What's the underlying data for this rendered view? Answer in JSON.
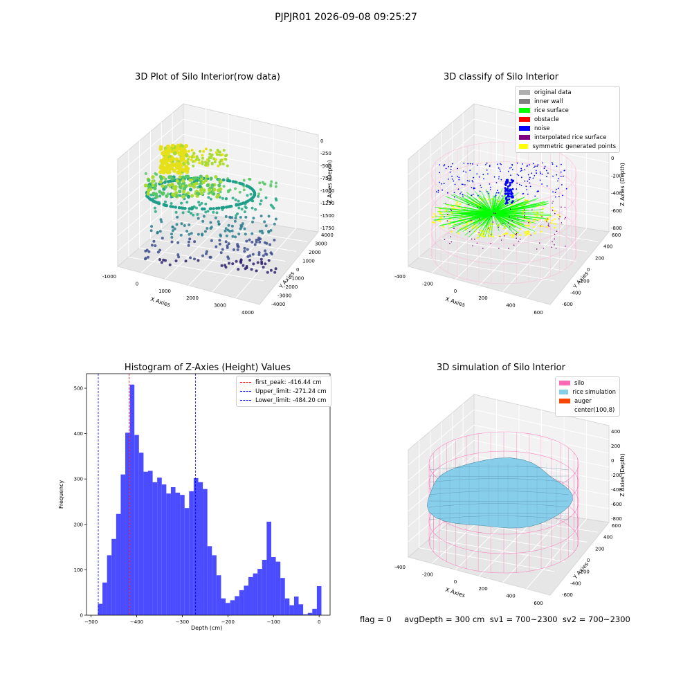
{
  "suptitle": "PJPJR01 2026-09-08 09:25:27",
  "panels": {
    "raw": {
      "title": "3D Plot of Silo Interior(row data)",
      "xlabel": "X Axies",
      "ylabel": "Y Axies",
      "zlabel": "Z Axies (Depth)",
      "xticks": [
        "-1000",
        "0",
        "1000",
        "2000",
        "3000",
        "4000"
      ],
      "yticks": [
        "4000",
        "3000",
        "2000",
        "1000",
        "0",
        "-1000",
        "-2000",
        "-3000",
        "-4000"
      ],
      "zticks": [
        "0",
        "-250",
        "-500",
        "-750",
        "-1000",
        "-1250",
        "-1500",
        "-1750"
      ]
    },
    "classify": {
      "title": "3D classify of Silo Interior",
      "xlabel": "X Axies",
      "ylabel": "Y Axies",
      "zlabel": "Z Axies (Depth)",
      "xticks": [
        "-400",
        "-200",
        "0",
        "200",
        "400",
        "600"
      ],
      "yticks": [
        "600",
        "400",
        "200",
        "0",
        "-200",
        "-400",
        "-600"
      ],
      "zticks": [
        "200",
        "0",
        "-200",
        "-400",
        "-600",
        "-800"
      ],
      "legend": [
        {
          "label": "original data",
          "color": "#b0b0b0"
        },
        {
          "label": "inner wall",
          "color": "#808080"
        },
        {
          "label": "rice surface",
          "color": "#00ff00"
        },
        {
          "label": "obstacle",
          "color": "#ff0000"
        },
        {
          "label": "noise",
          "color": "#0000ff"
        },
        {
          "label": "interpolated rice surface",
          "color": "#800080"
        },
        {
          "label": "symmetric generated points",
          "color": "#ffff00"
        }
      ]
    },
    "simulation": {
      "title": "3D simulation of Silo Interior",
      "xlabel": "X Axies",
      "ylabel": "Y Axies",
      "zlabel": "Z Axies (Depth)",
      "xticks": [
        "-400",
        "-200",
        "0",
        "200",
        "400",
        "600"
      ],
      "yticks": [
        "600",
        "400",
        "200",
        "0",
        "-200",
        "-400",
        "-600"
      ],
      "zticks": [
        "400",
        "200",
        "0",
        "-200",
        "-400",
        "-600",
        "-800"
      ],
      "legend": [
        {
          "label": "silo",
          "color": "#ff69b4"
        },
        {
          "label": "rice simulation",
          "color": "#87ceeb"
        },
        {
          "label": "auger",
          "color": "#ff4500"
        },
        {
          "label": "center(100,8)",
          "color": "#ffffff"
        }
      ]
    }
  },
  "footer": "flag = 0     avgDepth = 300 cm  sv1 = 700~2300  sv2 = 700~2300",
  "chart_data": {
    "type": "bar",
    "title": "Histogram of Z-Axies (Height) Values",
    "xlabel": "Depth (cm)",
    "ylabel": "Frequency",
    "xlim": [
      -510,
      24
    ],
    "ylim": [
      0,
      532
    ],
    "xticks": [
      -500,
      -400,
      -300,
      -200,
      -100,
      0
    ],
    "yticks": [
      0,
      100,
      200,
      300,
      400,
      500
    ],
    "bin_start": -485,
    "bin_width": 10,
    "values": [
      25,
      72,
      132,
      168,
      223,
      310,
      402,
      508,
      397,
      358,
      316,
      318,
      293,
      303,
      288,
      268,
      282,
      270,
      265,
      236,
      273,
      302,
      293,
      278,
      152,
      132,
      88,
      37,
      27,
      33,
      42,
      55,
      65,
      84,
      92,
      102,
      122,
      206,
      128,
      118,
      82,
      37,
      22,
      41,
      24,
      2,
      5,
      14,
      64
    ],
    "lines": [
      {
        "name": "first_peak: -416.44 cm",
        "x": -416.44,
        "color": "#ff0000"
      },
      {
        "name": "Upper_limit: -271.24 cm",
        "x": -271.24,
        "color": "#0000ff"
      },
      {
        "name": "Lower_limit: -484.20 cm",
        "x": -484.2,
        "color": "#0000ff"
      }
    ],
    "bar_color": "#4b4bff"
  }
}
